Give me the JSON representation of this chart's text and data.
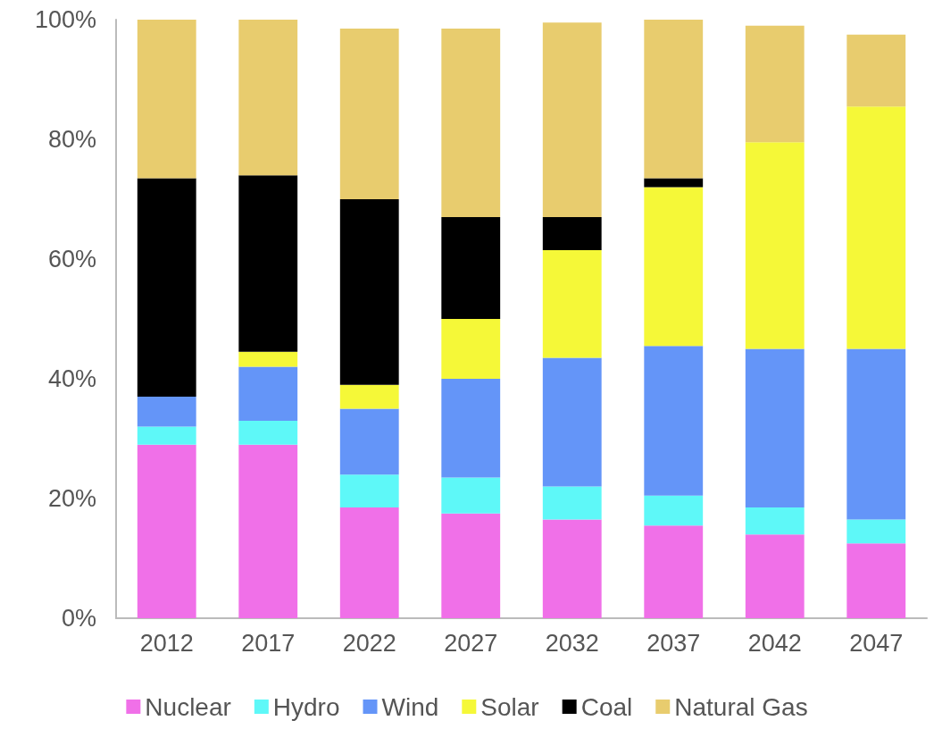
{
  "chart_data": {
    "type": "bar",
    "stacked": true,
    "categories": [
      "2012",
      "2017",
      "2022",
      "2027",
      "2032",
      "2037",
      "2042",
      "2047"
    ],
    "series": [
      {
        "name": "Nuclear",
        "color": "#f070e8",
        "values": [
          29,
          29,
          18.5,
          17.5,
          16.5,
          15.5,
          14,
          12.5
        ]
      },
      {
        "name": "Hydro",
        "color": "#5ef8f8",
        "values": [
          3,
          4,
          5.5,
          6,
          5.5,
          5,
          4.5,
          4
        ]
      },
      {
        "name": "Wind",
        "color": "#6495f8",
        "values": [
          5,
          9,
          11,
          16.5,
          21.5,
          25,
          26.5,
          28.5
        ]
      },
      {
        "name": "Solar",
        "color": "#f5f838",
        "values": [
          0,
          2.5,
          4,
          10,
          18,
          26.5,
          34.5,
          40.5
        ]
      },
      {
        "name": "Coal",
        "color": "#000000",
        "values": [
          36.5,
          29.5,
          31,
          17,
          5.5,
          1.5,
          0,
          0
        ]
      },
      {
        "name": "Natural Gas",
        "color": "#e8cc6e",
        "values": [
          26.5,
          26,
          28.5,
          31.5,
          32.5,
          26.5,
          19.5,
          12
        ]
      }
    ],
    "ylim": [
      0,
      100
    ],
    "yticks": [
      {
        "value": 0,
        "label": "0%"
      },
      {
        "value": 20,
        "label": "20%"
      },
      {
        "value": 40,
        "label": "40%"
      },
      {
        "value": 60,
        "label": "60%"
      },
      {
        "value": 80,
        "label": "80%"
      },
      {
        "value": 100,
        "label": "100%"
      }
    ],
    "grid": false,
    "legend": "bottom"
  }
}
